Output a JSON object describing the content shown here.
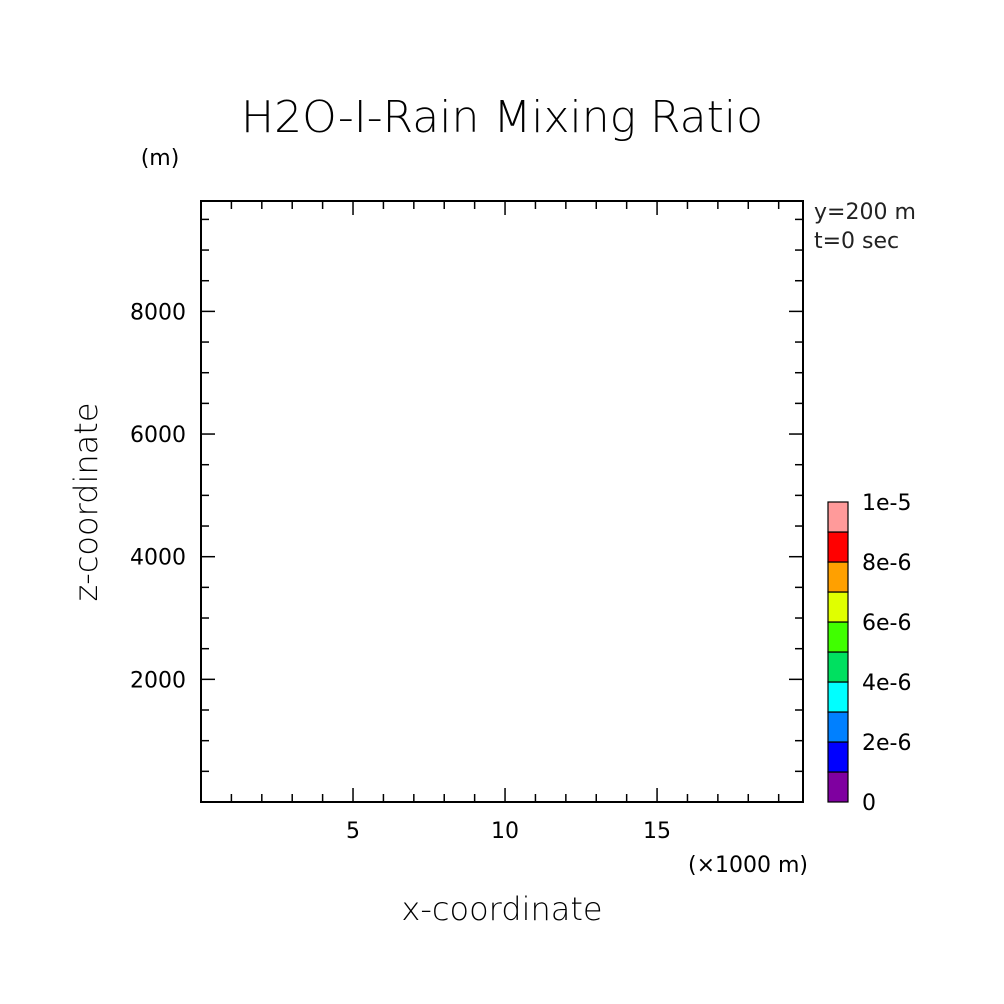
{
  "chart_data": {
    "type": "heatmap",
    "title": "H2O-I-Rain Mixing Ratio",
    "xlabel": "x-coordinate",
    "ylabel": "z-coordinate",
    "x_unit": "(×1000 m)",
    "y_unit": "(m)",
    "xlim": [
      0,
      19.8
    ],
    "ylim": [
      0,
      9800
    ],
    "x_ticks": [
      5,
      10,
      15
    ],
    "x_tick_labels": [
      "5",
      "10",
      "15"
    ],
    "x_minor_step": 1,
    "y_ticks": [
      2000,
      4000,
      6000,
      8000
    ],
    "y_tick_labels": [
      "2000",
      "4000",
      "6000",
      "8000"
    ],
    "y_minor_step": 500,
    "annotations": [
      "y=200 m",
      "t=0 sec"
    ],
    "values": [],
    "colorbar": {
      "min": 0,
      "max": 1e-05,
      "levels": [
        0,
        1e-06,
        2e-06,
        3e-06,
        4e-06,
        5e-06,
        6e-06,
        7e-06,
        8e-06,
        9e-06,
        1e-05
      ],
      "colors": [
        "#7f00a0",
        "#0000ff",
        "#0080ff",
        "#00ffff",
        "#00e060",
        "#40ff00",
        "#e0ff00",
        "#ffa000",
        "#ff0000",
        "#ff9a9a"
      ],
      "labels": [
        "0",
        "2e-6",
        "4e-6",
        "6e-6",
        "8e-6",
        "1e-5"
      ],
      "label_values": [
        0,
        2e-06,
        4e-06,
        6e-06,
        8e-06,
        1e-05
      ]
    }
  }
}
